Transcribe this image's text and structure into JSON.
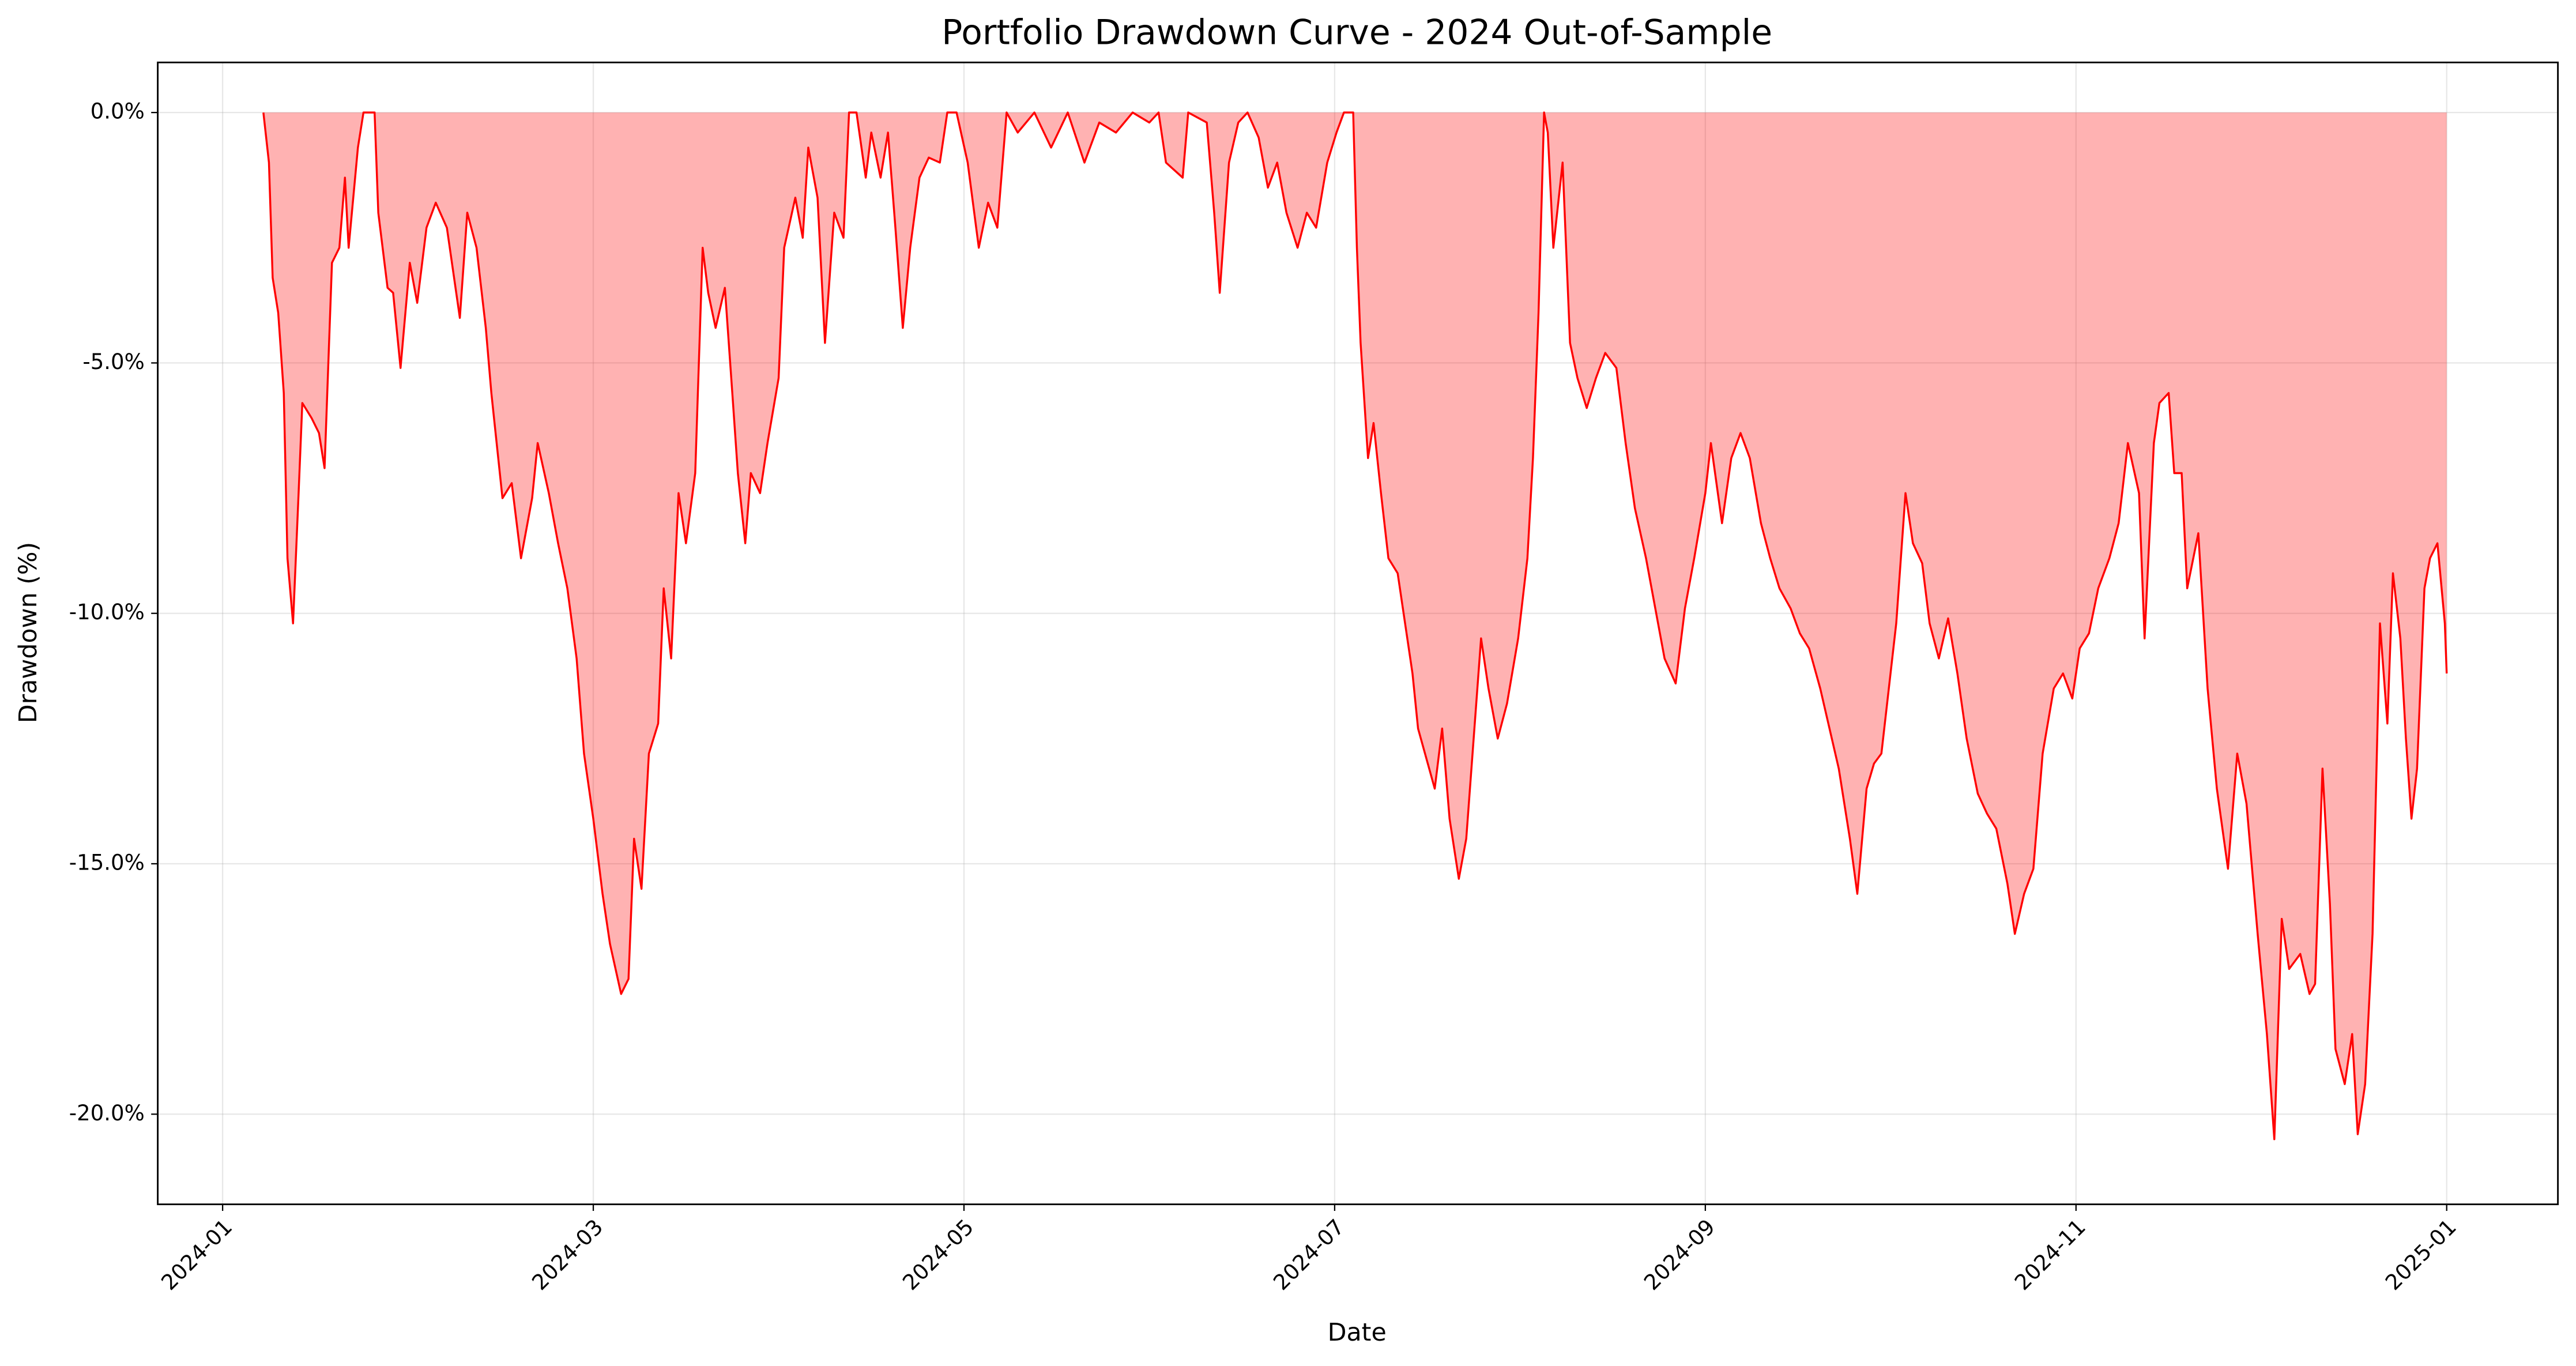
{
  "chart_data": {
    "type": "area",
    "title": "Portfolio Drawdown Curve - 2024 Out-of-Sample",
    "x_label": "Date",
    "y_label": "Drawdown (%)",
    "color": "#ff0000",
    "fill_alpha": 0.3,
    "grid": true,
    "xlim": [
      -0.35,
      12.6
    ],
    "ylim": [
      -21.8,
      1.0
    ],
    "xticks": [
      {
        "value": 0,
        "label": "2024-01"
      },
      {
        "value": 2,
        "label": "2024-03"
      },
      {
        "value": 4,
        "label": "2024-05"
      },
      {
        "value": 6,
        "label": "2024-07"
      },
      {
        "value": 8,
        "label": "2024-09"
      },
      {
        "value": 10,
        "label": "2024-11"
      },
      {
        "value": 12,
        "label": "2025-01"
      }
    ],
    "yticks": [
      {
        "value": 0,
        "label": "0.0%"
      },
      {
        "value": -5,
        "label": "-5.0%"
      },
      {
        "value": -10,
        "label": "-10.0%"
      },
      {
        "value": -15,
        "label": "-15.0%"
      },
      {
        "value": -20,
        "label": "-20.0%"
      }
    ],
    "x": [
      0.22,
      0.25,
      0.27,
      0.3,
      0.33,
      0.35,
      0.38,
      0.41,
      0.43,
      0.48,
      0.52,
      0.55,
      0.59,
      0.63,
      0.66,
      0.68,
      0.73,
      0.76,
      0.82,
      0.84,
      0.89,
      0.92,
      0.96,
      1.01,
      1.05,
      1.1,
      1.15,
      1.21,
      1.28,
      1.32,
      1.37,
      1.42,
      1.45,
      1.51,
      1.56,
      1.61,
      1.67,
      1.7,
      1.76,
      1.81,
      1.86,
      1.91,
      1.95,
      2.0,
      2.05,
      2.09,
      2.15,
      2.19,
      2.22,
      2.26,
      2.3,
      2.35,
      2.38,
      2.42,
      2.46,
      2.5,
      2.55,
      2.59,
      2.62,
      2.66,
      2.71,
      2.75,
      2.78,
      2.82,
      2.85,
      2.9,
      2.94,
      3.0,
      3.03,
      3.09,
      3.13,
      3.16,
      3.21,
      3.25,
      3.3,
      3.35,
      3.38,
      3.42,
      3.47,
      3.5,
      3.55,
      3.59,
      3.63,
      3.67,
      3.71,
      3.76,
      3.81,
      3.87,
      3.91,
      3.96,
      4.02,
      4.08,
      4.13,
      4.18,
      4.23,
      4.29,
      4.38,
      4.47,
      4.56,
      4.65,
      4.73,
      4.82,
      4.91,
      5.0,
      5.05,
      5.09,
      5.18,
      5.21,
      5.31,
      5.35,
      5.38,
      5.43,
      5.48,
      5.53,
      5.59,
      5.64,
      5.69,
      5.74,
      5.8,
      5.85,
      5.9,
      5.96,
      6.01,
      6.05,
      6.1,
      6.12,
      6.14,
      6.18,
      6.21,
      6.25,
      6.29,
      6.34,
      6.38,
      6.42,
      6.45,
      6.51,
      6.54,
      6.58,
      6.62,
      6.67,
      6.71,
      6.75,
      6.79,
      6.83,
      6.88,
      6.93,
      6.99,
      7.04,
      7.07,
      7.1,
      7.13,
      7.15,
      7.18,
      7.23,
      7.27,
      7.31,
      7.36,
      7.41,
      7.46,
      7.52,
      7.57,
      7.62,
      7.68,
      7.73,
      7.78,
      7.84,
      7.89,
      7.94,
      8.0,
      8.03,
      8.09,
      8.14,
      8.19,
      8.24,
      8.3,
      8.35,
      8.4,
      8.46,
      8.51,
      8.56,
      8.62,
      8.67,
      8.72,
      8.78,
      8.82,
      8.87,
      8.91,
      8.95,
      8.99,
      9.03,
      9.08,
      9.12,
      9.17,
      9.21,
      9.26,
      9.31,
      9.36,
      9.41,
      9.47,
      9.52,
      9.57,
      9.63,
      9.67,
      9.72,
      9.77,
      9.82,
      9.88,
      9.93,
      9.98,
      10.02,
      10.07,
      10.12,
      10.18,
      10.23,
      10.28,
      10.34,
      10.37,
      10.42,
      10.45,
      10.5,
      10.53,
      10.57,
      10.6,
      10.66,
      10.71,
      10.76,
      10.82,
      10.87,
      10.92,
      10.98,
      11.03,
      11.07,
      11.11,
      11.15,
      11.21,
      11.26,
      11.29,
      11.33,
      11.37,
      11.4,
      11.45,
      11.49,
      11.52,
      11.56,
      11.6,
      11.64,
      11.68,
      11.71,
      11.75,
      11.78,
      11.81,
      11.84,
      11.88,
      11.91,
      11.95,
      11.99,
      12.0
    ],
    "values": [
      0,
      -1.0,
      -3.3,
      -4.0,
      -5.6,
      -8.9,
      -10.2,
      -7.6,
      -5.8,
      -6.1,
      -6.4,
      -7.1,
      -3.0,
      -2.7,
      -1.3,
      -2.7,
      -0.7,
      0,
      0,
      -2.0,
      -3.5,
      -3.6,
      -5.1,
      -3.0,
      -3.8,
      -2.3,
      -1.8,
      -2.3,
      -4.1,
      -2.0,
      -2.7,
      -4.3,
      -5.6,
      -7.7,
      -7.4,
      -8.9,
      -7.7,
      -6.6,
      -7.6,
      -8.6,
      -9.5,
      -10.9,
      -12.8,
      -14.1,
      -15.6,
      -16.6,
      -17.6,
      -17.3,
      -14.5,
      -15.5,
      -12.8,
      -12.2,
      -9.5,
      -10.9,
      -7.6,
      -8.6,
      -7.2,
      -2.7,
      -3.6,
      -4.3,
      -3.5,
      -5.6,
      -7.2,
      -8.6,
      -7.2,
      -7.6,
      -6.6,
      -5.3,
      -2.7,
      -1.7,
      -2.5,
      -0.7,
      -1.7,
      -4.6,
      -2.0,
      -2.5,
      0,
      0,
      -1.3,
      -0.4,
      -1.3,
      -0.4,
      -2.3,
      -4.3,
      -2.7,
      -1.3,
      -0.9,
      -1.0,
      0,
      0,
      -1.0,
      -2.7,
      -1.8,
      -2.3,
      0,
      -0.4,
      0,
      -0.7,
      0,
      -1.0,
      -0.2,
      -0.4,
      0,
      -0.2,
      0,
      -1.0,
      -1.3,
      0,
      -0.2,
      -2.0,
      -3.6,
      -1.0,
      -0.2,
      0,
      -0.5,
      -1.5,
      -1.0,
      -2.0,
      -2.7,
      -2.0,
      -2.3,
      -1.0,
      -0.4,
      0,
      0,
      -2.7,
      -4.6,
      -6.9,
      -6.2,
      -7.6,
      -8.9,
      -9.2,
      -10.2,
      -11.2,
      -12.3,
      -13.1,
      -13.5,
      -12.3,
      -14.1,
      -15.3,
      -14.5,
      -12.5,
      -10.5,
      -11.5,
      -12.5,
      -11.8,
      -10.5,
      -8.9,
      -6.9,
      -4.0,
      0,
      -0.4,
      -2.7,
      -1.0,
      -4.6,
      -5.3,
      -5.9,
      -5.3,
      -4.8,
      -5.1,
      -6.6,
      -7.9,
      -8.9,
      -9.9,
      -10.9,
      -11.4,
      -9.9,
      -8.9,
      -7.6,
      -6.6,
      -8.2,
      -6.9,
      -6.4,
      -6.9,
      -8.2,
      -8.9,
      -9.5,
      -9.9,
      -10.4,
      -10.7,
      -11.5,
      -12.3,
      -13.1,
      -14.5,
      -15.6,
      -13.5,
      -13.0,
      -12.8,
      -11.5,
      -10.2,
      -7.6,
      -8.6,
      -9.0,
      -10.2,
      -10.9,
      -10.1,
      -11.2,
      -12.5,
      -13.6,
      -14.0,
      -14.3,
      -15.4,
      -16.4,
      -15.6,
      -15.1,
      -12.8,
      -11.5,
      -11.2,
      -11.7,
      -10.7,
      -10.4,
      -9.5,
      -8.9,
      -8.2,
      -6.6,
      -7.6,
      -10.5,
      -6.6,
      -5.8,
      -5.6,
      -7.2,
      -7.2,
      -9.5,
      -8.4,
      -11.5,
      -13.5,
      -15.1,
      -12.8,
      -13.8,
      -16.4,
      -18.4,
      -20.5,
      -16.1,
      -17.1,
      -16.8,
      -17.6,
      -17.4,
      -13.1,
      -15.8,
      -18.7,
      -19.4,
      -18.4,
      -20.4,
      -19.4,
      -16.4,
      -10.2,
      -12.2,
      -9.2,
      -10.5,
      -12.5,
      -14.1,
      -13.1,
      -9.5,
      -8.9,
      -8.6,
      -10.2,
      -11.2
    ]
  }
}
